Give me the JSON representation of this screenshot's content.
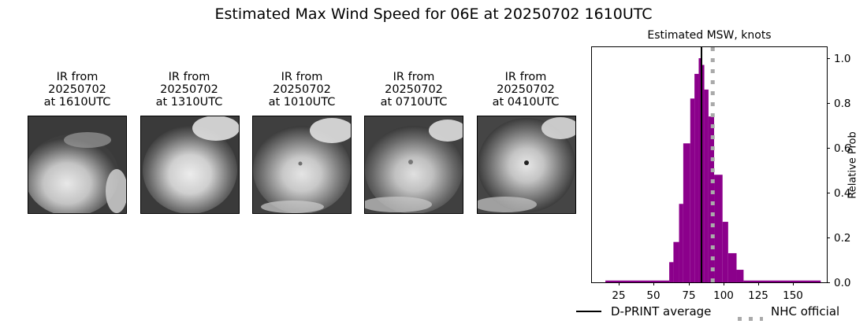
{
  "figure": {
    "title": "Estimated Max Wind Speed for 06E at 20250702 1610UTC"
  },
  "panels": [
    {
      "line1": "IR from",
      "line2": "20250702",
      "line3": "at 1610UTC"
    },
    {
      "line1": "IR from",
      "line2": "20250702",
      "line3": "at 1310UTC"
    },
    {
      "line1": "IR from",
      "line2": "20250702",
      "line3": "at 1010UTC"
    },
    {
      "line1": "IR from",
      "line2": "20250702",
      "line3": "at 0710UTC"
    },
    {
      "line1": "IR from",
      "line2": "20250702",
      "line3": "at 0410UTC"
    }
  ],
  "colors": {
    "histogram": "#8b008b",
    "dprint": "#000000",
    "nhc": "#aaaaaa"
  },
  "chart_data": {
    "type": "bar",
    "title": "Estimated MSW, knots",
    "xlabel": "",
    "ylabel": "Relative Prob",
    "xlim": [
      5,
      174
    ],
    "ylim": [
      0,
      1.05
    ],
    "xticks": [
      "25",
      "50",
      "75",
      "100",
      "125",
      "150"
    ],
    "yticks": [
      "0.0",
      "0.2",
      "0.4",
      "0.6",
      "0.8",
      "1.0"
    ],
    "bins": [
      {
        "x0": 15.5,
        "x1": 61,
        "value": 0.008
      },
      {
        "x0": 61,
        "x1": 64,
        "value": 0.09
      },
      {
        "x0": 64,
        "x1": 68,
        "value": 0.18
      },
      {
        "x0": 68,
        "x1": 71,
        "value": 0.35
      },
      {
        "x0": 71,
        "x1": 76,
        "value": 0.62
      },
      {
        "x0": 76,
        "x1": 79,
        "value": 0.82
      },
      {
        "x0": 79,
        "x1": 82,
        "value": 0.93
      },
      {
        "x0": 82,
        "x1": 84,
        "value": 1.0
      },
      {
        "x0": 84,
        "x1": 86,
        "value": 0.97
      },
      {
        "x0": 86,
        "x1": 89,
        "value": 0.86
      },
      {
        "x0": 89,
        "x1": 93,
        "value": 0.74
      },
      {
        "x0": 93,
        "x1": 99,
        "value": 0.48
      },
      {
        "x0": 99,
        "x1": 103,
        "value": 0.27
      },
      {
        "x0": 103,
        "x1": 109,
        "value": 0.13
      },
      {
        "x0": 109,
        "x1": 114,
        "value": 0.056
      },
      {
        "x0": 114,
        "x1": 169,
        "value": 0.008
      }
    ],
    "vlines": [
      {
        "name": "D-PRINT average",
        "x": 84,
        "style": "solid"
      },
      {
        "name": "NHC official",
        "x": 92,
        "style": "dotted"
      }
    ],
    "legend": [
      "D-PRINT average",
      "NHC official"
    ],
    "legend_position": "below",
    "grid": false
  }
}
